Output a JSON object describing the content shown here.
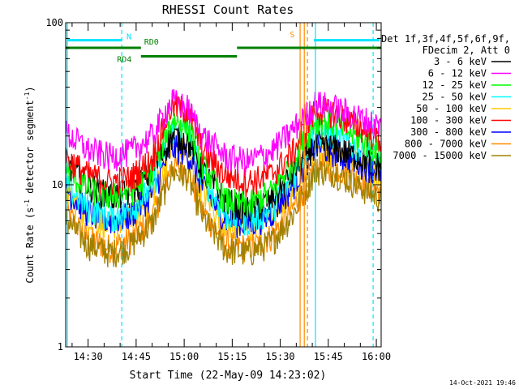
{
  "chart_data": {
    "type": "line",
    "title": "RHESSI Count Rates",
    "xlabel": "Start Time (22-May-09 14:23:02)",
    "ylabel_main": "Count Rate (s",
    "ylabel_sup1": "-1",
    "ylabel_mid": " detector segment",
    "ylabel_sup2": "-1",
    "ylabel_end": ")",
    "yscale": "log",
    "ylim": [
      1,
      100
    ],
    "xlim_minutes": [
      0,
      98.5
    ],
    "x_ticks": [
      {
        "label": "14:30",
        "minute": 7
      },
      {
        "label": "14:45",
        "minute": 22
      },
      {
        "label": "15:00",
        "minute": 37
      },
      {
        "label": "15:15",
        "minute": 52
      },
      {
        "label": "15:30",
        "minute": 67
      },
      {
        "label": "15:45",
        "minute": 82
      },
      {
        "label": "16:00",
        "minute": 97
      }
    ],
    "y_ticks": [
      {
        "label": "1",
        "value": 1
      },
      {
        "label": "10",
        "value": 10
      },
      {
        "label": "100",
        "value": 100
      }
    ],
    "legend_header": [
      "Det 1f,3f,4f,5f,6f,9f,",
      "FDecim 2, Att 0"
    ],
    "legend_position": "right",
    "series": [
      {
        "name": "3 - 6 keV",
        "color": "#000000",
        "values": [
          14,
          10,
          8.5,
          9,
          12,
          20,
          19,
          12,
          8,
          7,
          8,
          12,
          18,
          17,
          13
        ]
      },
      {
        "name": "6 - 12 keV",
        "color": "#ff00ff",
        "values": [
          21,
          16.5,
          15,
          16,
          20,
          33,
          30,
          20,
          15,
          14,
          16,
          22,
          32,
          30,
          23
        ]
      },
      {
        "name": "12 - 25 keV",
        "color": "#00ff00",
        "values": [
          12.5,
          9.5,
          8.5,
          9,
          12,
          25,
          24,
          13,
          8,
          7.5,
          9,
          14,
          25,
          24,
          16
        ]
      },
      {
        "name": "25 - 50 keV",
        "color": "#00ffff",
        "values": [
          10,
          7.3,
          6.3,
          7,
          9.5,
          22,
          21,
          11,
          6.5,
          6,
          7,
          11,
          22,
          20,
          14
        ]
      },
      {
        "name": "50 - 100 keV",
        "color": "#ffc800",
        "values": [
          9,
          6.4,
          5.6,
          6.2,
          8.4,
          17,
          16,
          9,
          5.8,
          5.3,
          6.2,
          9.5,
          17.5,
          15.5,
          12
        ]
      },
      {
        "name": "100 - 300 keV",
        "color": "#ff0000",
        "values": [
          15,
          11.5,
          10.5,
          11,
          14.5,
          31,
          29,
          16,
          11.5,
          10.5,
          11.5,
          16,
          29,
          28,
          19
        ]
      },
      {
        "name": "300 - 800 keV",
        "color": "#0000ff",
        "values": [
          9.5,
          6.8,
          6,
          6.5,
          8.8,
          17,
          16,
          9.5,
          6.2,
          5.7,
          6.6,
          10,
          17.5,
          16,
          12
        ]
      },
      {
        "name": "800 - 7000 keV",
        "color": "#ff8c00",
        "values": [
          6.8,
          4.7,
          4.1,
          4.6,
          6.3,
          13,
          12.5,
          6.8,
          4.4,
          4.1,
          4.8,
          7.2,
          13.5,
          13,
          9
        ]
      },
      {
        "name": "7000 - 15000 keV",
        "color": "#a08000",
        "values": [
          6.1,
          4.3,
          3.8,
          4.2,
          5.8,
          12,
          11.5,
          6.2,
          4,
          3.8,
          4.4,
          6.6,
          12.4,
          12,
          8.2
        ]
      }
    ],
    "series_x_minutes": [
      0,
      7,
      14,
      20,
      27,
      33,
      38,
      43,
      50,
      57,
      64,
      71,
      78,
      84,
      98.5
    ],
    "annotations": [
      {
        "label": "N",
        "color": "#00e5ff",
        "y": 78,
        "segments": [
          [
            0.5,
            17.5
          ],
          [
            77.5,
            98
          ]
        ]
      },
      {
        "label": "RD0",
        "color": "#008000",
        "y": 70,
        "segments": [
          [
            0,
            23.5
          ],
          [
            53.5,
            98.5
          ]
        ]
      },
      {
        "label": "RD4",
        "color": "#008000",
        "y": 62,
        "segments": [
          [
            23.5,
            53.5
          ]
        ]
      },
      {
        "label": "S",
        "color": "#ff8c00",
        "y": 85,
        "segments": []
      }
    ],
    "vertical_lines": [
      {
        "minute": 0.5,
        "color": "#00e5ff",
        "style": "solid"
      },
      {
        "minute": 17.5,
        "color": "#00e5ff",
        "style": "dashed"
      },
      {
        "minute": 73.2,
        "color": "#ff8c00",
        "style": "solid"
      },
      {
        "minute": 74.5,
        "color": "#ff8c00",
        "style": "solid"
      },
      {
        "minute": 75.5,
        "color": "#ff8c00",
        "style": "dashed"
      },
      {
        "minute": 78,
        "color": "#00e5ff",
        "style": "solid"
      },
      {
        "minute": 96,
        "color": "#00e5ff",
        "style": "dashed"
      }
    ],
    "grid": false
  },
  "footer": {
    "timestamp": "14-Oct-2021 19:46"
  }
}
